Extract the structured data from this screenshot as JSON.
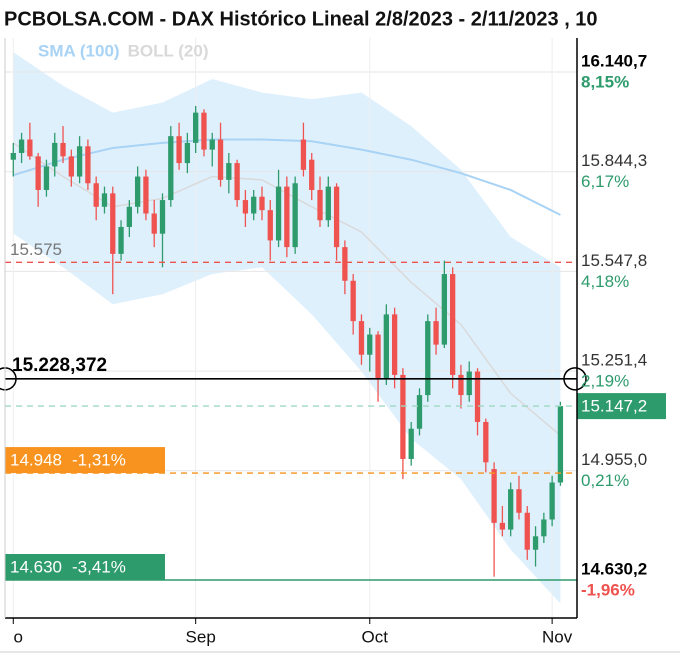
{
  "chart_data": {
    "type": "candlestick",
    "title": "PCBOLSA.COM - DAX Histórico Lineal 2/8/2023 - 2/11/2023 , 10",
    "up_color": "#2e9b6c",
    "down_color": "#ef5350",
    "open": [
      15880,
      15900,
      15940,
      15890,
      15790,
      15860,
      15930,
      15890,
      15830,
      15920,
      15810,
      15740,
      15780,
      15600,
      15680,
      15740,
      15830,
      15720,
      15660,
      15760,
      15950,
      15870,
      15930,
      16020,
      15910,
      15940,
      15820,
      15870,
      15760,
      15720,
      15770,
      15730,
      15640,
      15800,
      15620,
      15940,
      15880,
      15790,
      15700,
      15800,
      15620,
      15520,
      15400,
      15300,
      15360,
      15230,
      15420,
      15240,
      14990,
      15080,
      15180,
      15400,
      15330,
      15540,
      15240,
      15180,
      15250,
      15100,
      14960,
      14800,
      14780,
      14900,
      14830,
      14720,
      14760,
      14810,
      14920
    ],
    "high": [
      15930,
      15960,
      15990,
      15900,
      15880,
      15960,
      15980,
      15910,
      15950,
      15940,
      15830,
      15800,
      15800,
      15700,
      15760,
      15860,
      15850,
      15760,
      15780,
      15980,
      15990,
      15960,
      16040,
      16030,
      15960,
      15990,
      15900,
      15880,
      15790,
      15790,
      15800,
      15760,
      15850,
      15830,
      15830,
      15990,
      15900,
      15830,
      15830,
      15810,
      15640,
      15540,
      15420,
      15380,
      15370,
      15450,
      15440,
      15260,
      15100,
      15200,
      15420,
      15440,
      15580,
      15560,
      15270,
      15280,
      15260,
      15110,
      14980,
      14850,
      14920,
      14940,
      14850,
      14790,
      14830,
      14940,
      15160
    ],
    "low": [
      15830,
      15870,
      15880,
      15740,
      15770,
      15830,
      15870,
      15800,
      15810,
      15790,
      15700,
      15720,
      15480,
      15580,
      15650,
      15720,
      15700,
      15620,
      15560,
      15740,
      15850,
      15840,
      15900,
      15890,
      15860,
      15800,
      15780,
      15740,
      15680,
      15700,
      15700,
      15580,
      15620,
      15590,
      15600,
      15830,
      15760,
      15680,
      15680,
      15580,
      15480,
      15360,
      15270,
      15250,
      15160,
      15210,
      15200,
      14930,
      14970,
      15060,
      15160,
      15300,
      15320,
      15200,
      15140,
      15160,
      15060,
      14950,
      14640,
      14760,
      14760,
      14810,
      14690,
      14670,
      14740,
      14790,
      14910
    ],
    "close": [
      15900,
      15940,
      15890,
      15790,
      15860,
      15930,
      15890,
      15830,
      15920,
      15810,
      15740,
      15780,
      15600,
      15680,
      15740,
      15830,
      15720,
      15660,
      15760,
      15950,
      15870,
      15930,
      16020,
      15910,
      15940,
      15820,
      15870,
      15760,
      15720,
      15770,
      15730,
      15640,
      15800,
      15620,
      15810,
      15850,
      15790,
      15700,
      15800,
      15620,
      15520,
      15400,
      15300,
      15360,
      15230,
      15420,
      15240,
      14990,
      15080,
      15180,
      15400,
      15330,
      15540,
      15240,
      15180,
      15250,
      15100,
      14980,
      14800,
      14780,
      14900,
      14830,
      14720,
      14760,
      14810,
      14920,
      15147.2
    ],
    "xticks": [
      {
        "value": 0,
        "label": "o"
      },
      {
        "value": 22,
        "label": "Sep"
      },
      {
        "value": 43,
        "label": "Oct"
      },
      {
        "value": 65,
        "label": "Nov"
      }
    ],
    "ylim": [
      14517,
      16242
    ],
    "yticks": [
      {
        "value": 16140.7,
        "label": "16.140,7"
      },
      {
        "value": 15844.3,
        "label": "15.844,3"
      },
      {
        "value": 15547.8,
        "label": "15.547,8"
      },
      {
        "value": 15251.4,
        "label": "15.251,4"
      },
      {
        "value": 14955.0,
        "label": "14.955,0"
      },
      {
        "value": 14630.2,
        "label": "14.630,2"
      }
    ],
    "ytick_changes": {
      "values": [
        8.15,
        6.17,
        4.18,
        2.19,
        0.21,
        -1.96
      ],
      "value_labels": [
        "8,15%",
        "6,17%",
        "4,18%",
        "2,19%",
        "0,21%",
        "-1,96%"
      ]
    },
    "grid": true,
    "indicators": [
      {
        "name": "SMA (100)",
        "color": "#a8d3f5",
        "x": [
          0,
          6,
          12,
          18,
          24,
          30,
          36,
          42,
          48,
          54,
          60,
          66
        ],
        "values": [
          15834,
          15880,
          15915,
          15930,
          15940,
          15940,
          15935,
          15910,
          15880,
          15840,
          15790,
          15716
        ]
      },
      {
        "name": "BOLL (20)",
        "color": "#d9d9d9",
        "band_color": "#dff0fd",
        "x": [
          0,
          6,
          12,
          18,
          24,
          30,
          36,
          42,
          48,
          54,
          60,
          66
        ],
        "mid": [
          15930,
          15830,
          15740,
          15765,
          15830,
          15820,
          15740,
          15665,
          15515,
          15390,
          15185,
          15060
        ],
        "upper": [
          16200,
          16100,
          16020,
          16050,
          16120,
          16080,
          16060,
          16080,
          15980,
          15850,
          15650,
          15560
        ],
        "lower": [
          15660,
          15560,
          15450,
          15480,
          15540,
          15560,
          15420,
          15250,
          15050,
          14930,
          14720,
          14560
        ]
      }
    ],
    "levels": [
      {
        "value": 15575,
        "label": "15.575",
        "color": "#ef5350",
        "style": "dashed"
      },
      {
        "value": 15228.372,
        "label": "15.228,372",
        "color": "#000000",
        "style": "solid",
        "handles": true
      },
      {
        "value": 15147.2,
        "label": "15.147,2",
        "color": "#9ed8c0",
        "style": "dashed",
        "box": "right",
        "box_color": "#2e9b6c"
      },
      {
        "value": 14948,
        "label": "14.948",
        "change": -1.31,
        "change_label": "-1,31%",
        "color": "#f7931e",
        "style": "dashed",
        "box": "left",
        "box_color": "#f7931e"
      },
      {
        "value": 14630,
        "label": "14.630",
        "change": -3.41,
        "change_label": "-3,41%",
        "color": "#2e9b6c",
        "style": "solid",
        "box": "left",
        "box_color": "#2e9b6c"
      }
    ]
  }
}
